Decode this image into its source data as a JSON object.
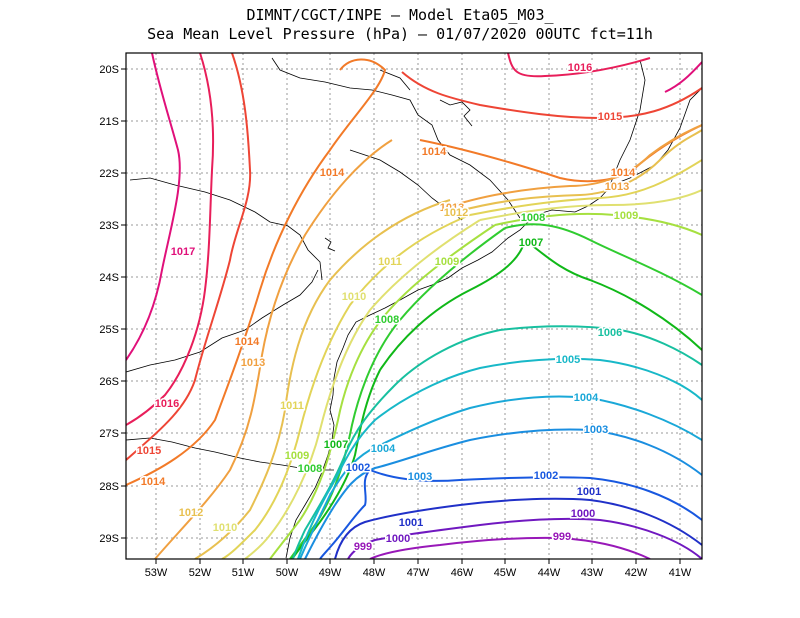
{
  "title_line1": "DIMNT/CGCT/INPE —  Model Eta05_M03_",
  "title_line2": "Sea Mean Level Pressure (hPa) — 01/07/2020 00UTC fct=11h",
  "axes": {
    "lat_ticks": [
      "20S",
      "21S",
      "22S",
      "23S",
      "24S",
      "25S",
      "26S",
      "27S",
      "28S",
      "29S"
    ],
    "lon_ticks": [
      "53W",
      "52W",
      "51W",
      "50W",
      "49W",
      "48W",
      "47W",
      "46W",
      "45W",
      "44W",
      "43W",
      "42W",
      "41W"
    ]
  },
  "colors": {
    "1017": "#e0107a",
    "1016": "#e81e5a",
    "1015": "#ee4535",
    "1014": "#f27a28",
    "1013": "#f0a040",
    "1012": "#e8c050",
    "1011": "#e2d458",
    "1010": "#e0e070",
    "1009": "#a6e040",
    "1008": "#30cc30",
    "1007": "#10b818",
    "1006": "#18c0a0",
    "1005": "#18b8c8",
    "1004": "#1aa8d8",
    "1003": "#1a8ee0",
    "1002": "#1858e0",
    "1001": "#2030c8",
    "1000": "#7018c0",
    "999": "#9818b8"
  },
  "isobar_labels": [
    {
      "text": "1016",
      "color": "1016"
    },
    {
      "text": "1015",
      "color": "1015"
    },
    {
      "text": "1014",
      "color": "1014"
    },
    {
      "text": "1014",
      "color": "1014"
    },
    {
      "text": "1013",
      "color": "1013"
    },
    {
      "text": "1014",
      "color": "1014"
    },
    {
      "text": "1013",
      "color": "1013"
    },
    {
      "text": "1012",
      "color": "1012"
    },
    {
      "text": "1009",
      "color": "1009"
    },
    {
      "text": "1008",
      "color": "1008"
    },
    {
      "text": "1007",
      "color": "1007"
    },
    {
      "text": "1017",
      "color": "1017"
    },
    {
      "text": "1011",
      "color": "1011"
    },
    {
      "text": "1009",
      "color": "1009"
    },
    {
      "text": "1010",
      "color": "1010"
    },
    {
      "text": "1008",
      "color": "1008"
    },
    {
      "text": "1014",
      "color": "1014"
    },
    {
      "text": "1013",
      "color": "1013"
    },
    {
      "text": "1006",
      "color": "1006"
    },
    {
      "text": "1005",
      "color": "1005"
    },
    {
      "text": "1016",
      "color": "1016"
    },
    {
      "text": "1011",
      "color": "1011"
    },
    {
      "text": "1004",
      "color": "1004"
    },
    {
      "text": "1003",
      "color": "1003"
    },
    {
      "text": "1015",
      "color": "1015"
    },
    {
      "text": "1007",
      "color": "1007"
    },
    {
      "text": "1009",
      "color": "1009"
    },
    {
      "text": "1004",
      "color": "1004"
    },
    {
      "text": "1008",
      "color": "1008"
    },
    {
      "text": "1002",
      "color": "1002"
    },
    {
      "text": "1003",
      "color": "1003"
    },
    {
      "text": "1002",
      "color": "1002"
    },
    {
      "text": "1014",
      "color": "1014"
    },
    {
      "text": "1001",
      "color": "1001"
    },
    {
      "text": "1012",
      "color": "1012"
    },
    {
      "text": "1000",
      "color": "1000"
    },
    {
      "text": "1010",
      "color": "1010"
    },
    {
      "text": "1001",
      "color": "1001"
    },
    {
      "text": "1000",
      "color": "1000"
    },
    {
      "text": "999",
      "color": "999"
    },
    {
      "text": "999",
      "color": "999"
    }
  ]
}
